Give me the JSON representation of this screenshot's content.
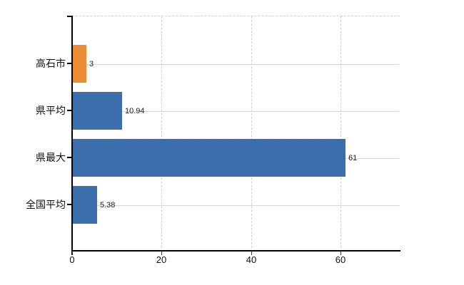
{
  "chart_data": {
    "type": "bar",
    "orientation": "horizontal",
    "title": "",
    "xlabel": "",
    "ylabel": "",
    "categories": [
      "高石市",
      "県平均",
      "県最大",
      "全国平均"
    ],
    "values": [
      3,
      10.94,
      61,
      5.38
    ],
    "value_labels": [
      "3",
      "10.94",
      "61",
      "5.38"
    ],
    "bar_colors": [
      "#ED8A34",
      "#3C6EAE",
      "#3C6EAE",
      "#3C6EAE"
    ],
    "x_ticks": [
      0,
      20,
      40,
      60
    ],
    "x_tick_labels": [
      "0",
      "20",
      "40",
      "60"
    ],
    "xlim": [
      0,
      73.3
    ],
    "grid": {
      "vertical": "dashed at 20, 40, 60",
      "horizontal": "solid pale line at each category center"
    },
    "legend": "none"
  },
  "colors": {
    "background": "#ffffff",
    "axis": "#000000",
    "vertical_gridline": "#c9cfc9",
    "horizontal_gridline": "#d3dad2",
    "bar_orange": "#ED8A34",
    "bar_blue": "#3C6EAE",
    "label_text": "#111111"
  }
}
